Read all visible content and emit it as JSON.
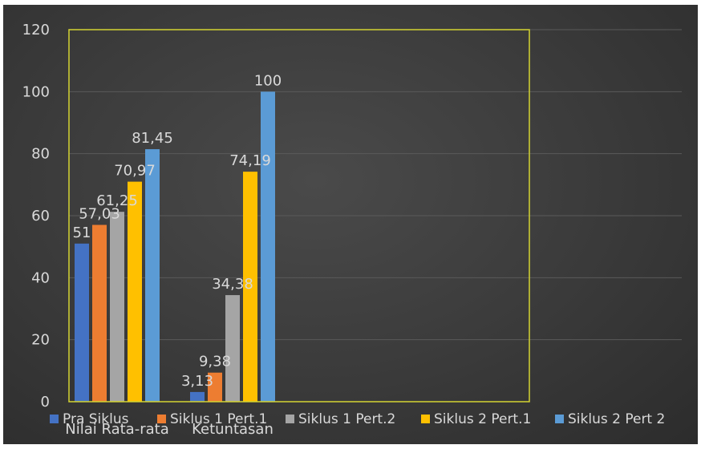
{
  "chart_data": {
    "type": "bar",
    "title": "",
    "xlabel": "",
    "ylabel": "",
    "categories": [
      "Nilai Rata-rata",
      "Ketuntasan"
    ],
    "ylim": [
      0,
      120
    ],
    "yticks": [
      0,
      20,
      40,
      60,
      80,
      100,
      120
    ],
    "grid": true,
    "legend_position": "bottom",
    "series": [
      {
        "name": "Pra Siklus",
        "color": "#4472c4",
        "values": [
          51,
          3.13
        ],
        "labels": [
          "51",
          "3,13"
        ]
      },
      {
        "name": "Siklus 1 Pert.1",
        "color": "#ed7d31",
        "values": [
          57.03,
          9.38
        ],
        "labels": [
          "57,03",
          "9,38"
        ]
      },
      {
        "name": "Siklus 1 Pert.2",
        "color": "#a5a5a5",
        "values": [
          61.25,
          34.38
        ],
        "labels": [
          "61,25",
          "34,38"
        ]
      },
      {
        "name": "Siklus 2 Pert.1",
        "color": "#ffc000",
        "values": [
          70.97,
          74.19
        ],
        "labels": [
          "70,97",
          "74,19"
        ]
      },
      {
        "name": "Siklus 2 Pert 2",
        "color": "#5b9bd5",
        "values": [
          81.45,
          100
        ],
        "labels": [
          "81,45",
          "100"
        ]
      }
    ],
    "colors": {
      "plot_border": "#d4d432",
      "gridline": "#5a5a5a",
      "text": "#d9d9d9"
    }
  }
}
